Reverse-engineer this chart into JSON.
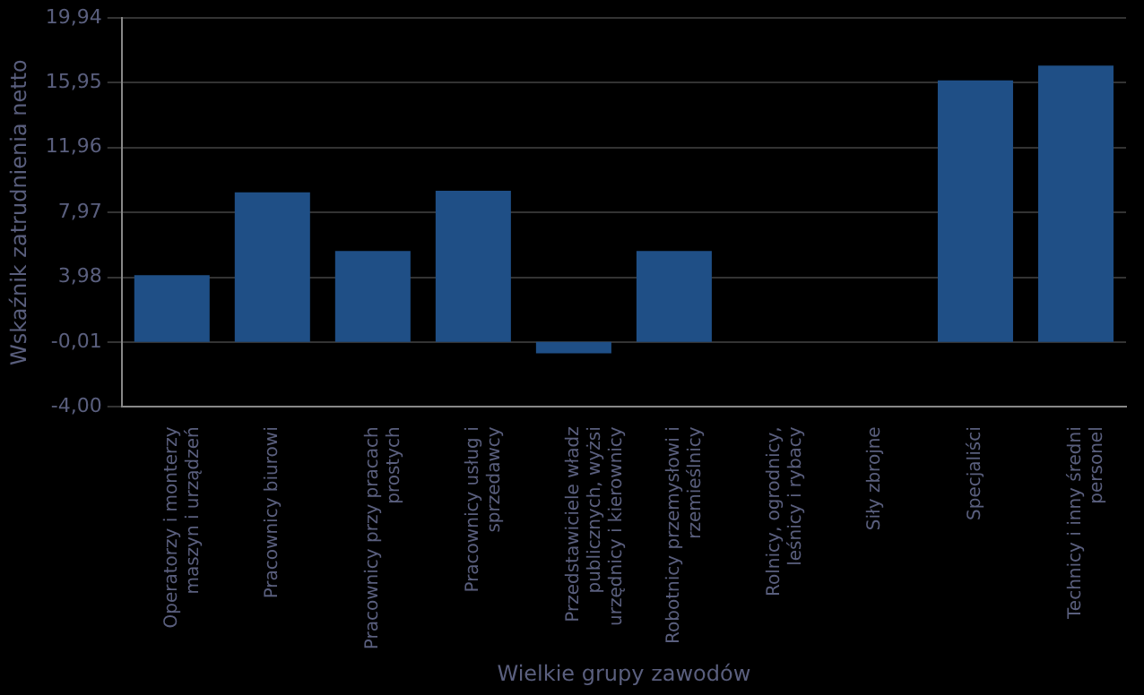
{
  "chart_data": {
    "type": "bar",
    "xlabel": "Wielkie grupy zawodów",
    "ylabel": "Wskaźnik zatrudnienia netto",
    "categories": [
      "Operatorzy i monterzy maszyn i urządzeń",
      "Pracownicy biurowi",
      "Pracownicy przy pracach prostych",
      "Pracownicy usług i sprzedawcy",
      "Przedstawiciele władz publicznych, wyżsi urzędnicy i kierownicy",
      "Robotnicy przemysłowi i rzemieślnicy",
      "Rolnicy, ogrodnicy, leśnicy i rybacy",
      "Siły zbrojne",
      "Specjaliści",
      "Technicy i inny średni personel"
    ],
    "values": [
      4.1,
      9.2,
      5.6,
      9.3,
      -0.7,
      5.6,
      0,
      0,
      16.1,
      17.0
    ],
    "color": "#1f4f86",
    "ylim": [
      -4,
      19.94
    ],
    "yticks": [
      {
        "value": -4,
        "label": "-4,00"
      },
      {
        "value": -0.01,
        "label": "-0,01"
      },
      {
        "value": 3.98,
        "label": "3,98"
      },
      {
        "value": 7.97,
        "label": "7,97"
      },
      {
        "value": 11.96,
        "label": "11,96"
      },
      {
        "value": 15.95,
        "label": "15,95"
      },
      {
        "value": 19.94,
        "label": "19,94"
      }
    ],
    "grid": "y",
    "legend": false
  }
}
